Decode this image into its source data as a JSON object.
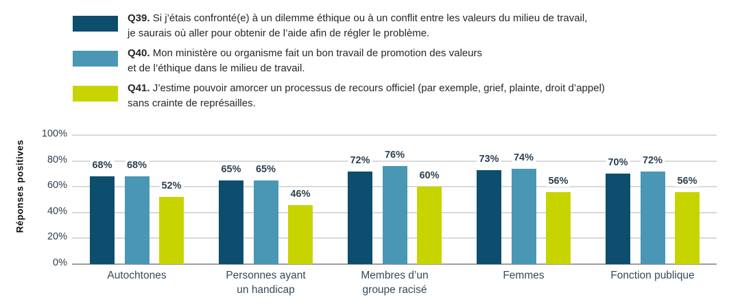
{
  "chart_data": {
    "type": "bar",
    "title": "",
    "ylabel": "Réponses positives",
    "xlabel": "",
    "ylim": [
      0,
      100
    ],
    "ytick_step": 20,
    "ytick_labels": [
      "0%",
      "20%",
      "40%",
      "60%",
      "80%",
      "100%"
    ],
    "grid": true,
    "legend_position": "top-left",
    "categories": [
      "Autochtones",
      "Personnes ayant un handicap",
      "Membres d’un groupe racisé",
      "Femmes",
      "Fonction publique"
    ],
    "category_label_lines": [
      [
        "Autochtones"
      ],
      [
        "Personnes ayant",
        "un handicap"
      ],
      [
        "Membres d’un",
        "groupe racisé"
      ],
      [
        "Femmes"
      ],
      [
        "Fonction publique"
      ]
    ],
    "series": [
      {
        "name": "Q39.",
        "color": "#0d4e6e",
        "legend_line1": "Si j’étais confronté(e) à un dilemme éthique ou à un conflit entre les valeurs du milieu de travail,",
        "legend_line2": "je saurais où aller pour obtenir de l’aide afin de régler le problème.",
        "values": [
          68,
          65,
          72,
          73,
          70
        ]
      },
      {
        "name": "Q40.",
        "color": "#4997b4",
        "legend_line1": "Mon ministère ou organisme fait un bon travail de promotion des valeurs",
        "legend_line2": "et de l’éthique dans le milieu de travail.",
        "values": [
          68,
          65,
          76,
          74,
          72
        ]
      },
      {
        "name": "Q41.",
        "color": "#c8d400",
        "legend_line1": "J’estime pouvoir amorcer un processus de recours officiel (par exemple, grief, plainte, droit d’appel)",
        "legend_line2": "sans crainte de représailles.",
        "values": [
          52,
          46,
          60,
          56,
          56
        ]
      }
    ],
    "value_suffix": "%"
  },
  "colors": {
    "gridline": "#d8d8d8",
    "axis_baseline": "#9e9e9e",
    "tick_label": "#2e3f4e",
    "data_label": "#2d4152",
    "category_label": "#35495a",
    "legend_text": "#262626"
  }
}
